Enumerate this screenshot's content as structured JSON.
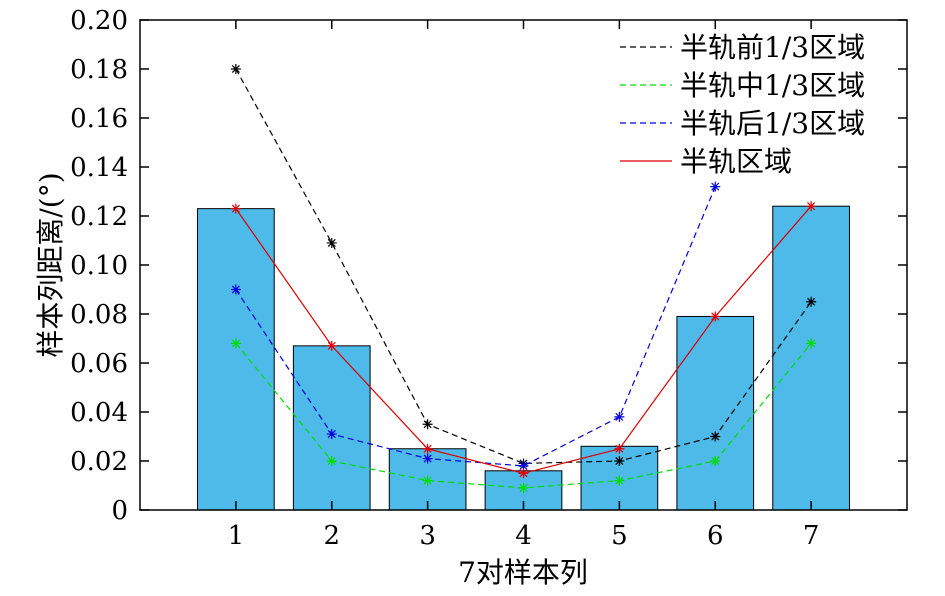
{
  "chart_data": {
    "type": "bar",
    "xlabel": "7对样本列",
    "ylabel": "样本列距离/(°)",
    "xlim": [
      0.0,
      8.0
    ],
    "ylim": [
      0,
      0.2
    ],
    "x_ticks": [
      "1",
      "2",
      "3",
      "4",
      "5",
      "6",
      "7"
    ],
    "y_ticks": [
      "0",
      "0.02",
      "0.04",
      "0.06",
      "0.08",
      "0.10",
      "0.12",
      "0.14",
      "0.16",
      "0.18",
      "0.20"
    ],
    "grid": false,
    "legend_position": "top-right",
    "categories": [
      1,
      2,
      3,
      4,
      5,
      6,
      7
    ],
    "bars": {
      "values": [
        0.123,
        0.067,
        0.025,
        0.016,
        0.026,
        0.079,
        0.124
      ],
      "color": "#4ebaea"
    },
    "series": [
      {
        "name": "半轨前1/3区域",
        "color": "#000000",
        "style": "dashed",
        "x": [
          1,
          2,
          3,
          4,
          5,
          6,
          7
        ],
        "values": [
          0.18,
          0.109,
          0.035,
          0.019,
          0.02,
          0.03,
          0.085
        ]
      },
      {
        "name": "半轨中1/3区域",
        "color": "#00dd00",
        "style": "dashed",
        "x": [
          1,
          2,
          3,
          4,
          5,
          6,
          7
        ],
        "values": [
          0.068,
          0.02,
          0.012,
          0.009,
          0.012,
          0.02,
          0.068
        ]
      },
      {
        "name": "半轨后1/3区域",
        "color": "#0000dd",
        "style": "dashed",
        "x": [
          1,
          2,
          3,
          4,
          5,
          6
        ],
        "values": [
          0.09,
          0.031,
          0.021,
          0.018,
          0.038,
          0.132
        ]
      },
      {
        "name": "半轨区域",
        "color": "#dd0000",
        "style": "solid",
        "x": [
          1,
          2,
          3,
          4,
          5,
          6,
          7
        ],
        "values": [
          0.123,
          0.067,
          0.025,
          0.015,
          0.025,
          0.079,
          0.124
        ]
      }
    ]
  }
}
